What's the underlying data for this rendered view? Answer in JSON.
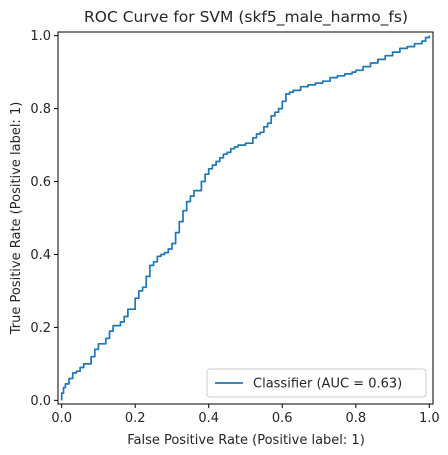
{
  "chart_data": {
    "type": "line",
    "title": "ROC Curve for SVM (skf5_male_harmo_fs)",
    "xlabel": "False Positive Rate (Positive label: 1)",
    "ylabel": "True Positive Rate (Positive label: 1)",
    "xlim": [
      -0.01,
      1.01
    ],
    "ylim": [
      -0.01,
      1.01
    ],
    "xticks": [
      "0.0",
      "0.2",
      "0.4",
      "0.6",
      "0.8",
      "1.0"
    ],
    "yticks": [
      "0.0",
      "0.2",
      "0.4",
      "0.6",
      "0.8",
      "1.0"
    ],
    "grid": false,
    "legend_position": "lower-right",
    "series": [
      {
        "name": "Classifier (AUC = 0.63)",
        "color": "#1f77b4",
        "x": [
          0.0,
          0.0,
          0.005,
          0.01,
          0.02,
          0.03,
          0.04,
          0.05,
          0.06,
          0.08,
          0.09,
          0.1,
          0.12,
          0.13,
          0.14,
          0.16,
          0.17,
          0.18,
          0.2,
          0.21,
          0.22,
          0.23,
          0.24,
          0.25,
          0.26,
          0.27,
          0.28,
          0.29,
          0.3,
          0.31,
          0.32,
          0.33,
          0.34,
          0.35,
          0.36,
          0.38,
          0.39,
          0.4,
          0.41,
          0.42,
          0.43,
          0.44,
          0.45,
          0.46,
          0.47,
          0.48,
          0.5,
          0.52,
          0.53,
          0.54,
          0.55,
          0.56,
          0.57,
          0.58,
          0.59,
          0.6,
          0.61,
          0.62,
          0.63,
          0.65,
          0.67,
          0.69,
          0.71,
          0.73,
          0.75,
          0.77,
          0.79,
          0.8,
          0.82,
          0.84,
          0.86,
          0.88,
          0.9,
          0.92,
          0.94,
          0.96,
          0.98,
          0.99,
          1.0
        ],
        "y": [
          0.0,
          0.02,
          0.035,
          0.045,
          0.06,
          0.075,
          0.08,
          0.09,
          0.1,
          0.12,
          0.14,
          0.155,
          0.17,
          0.19,
          0.205,
          0.215,
          0.23,
          0.25,
          0.28,
          0.3,
          0.31,
          0.34,
          0.37,
          0.38,
          0.395,
          0.4,
          0.405,
          0.415,
          0.43,
          0.46,
          0.49,
          0.52,
          0.545,
          0.56,
          0.575,
          0.6,
          0.62,
          0.635,
          0.645,
          0.655,
          0.665,
          0.675,
          0.68,
          0.69,
          0.695,
          0.7,
          0.705,
          0.72,
          0.73,
          0.735,
          0.75,
          0.76,
          0.78,
          0.79,
          0.8,
          0.82,
          0.84,
          0.845,
          0.85,
          0.86,
          0.865,
          0.87,
          0.875,
          0.885,
          0.89,
          0.895,
          0.9,
          0.905,
          0.915,
          0.925,
          0.935,
          0.945,
          0.955,
          0.965,
          0.97,
          0.978,
          0.985,
          0.995,
          1.0
        ]
      }
    ]
  }
}
